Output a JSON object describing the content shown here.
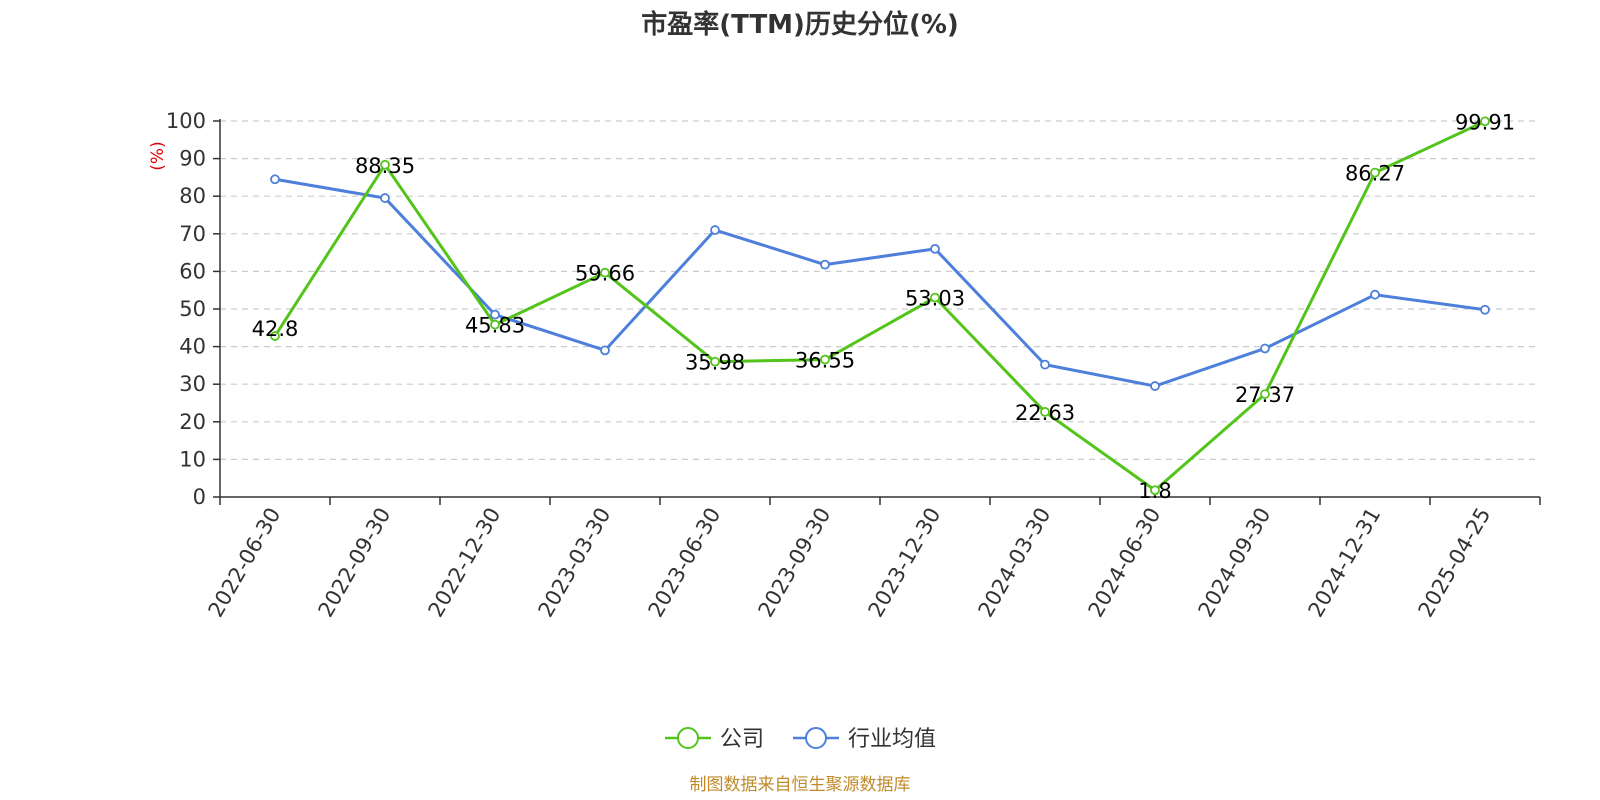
{
  "chart_data": {
    "type": "line",
    "title": "市盈率(TTM)历史分位(%)",
    "ylabel": "(%)",
    "xlabel": "",
    "ylim": [
      0,
      100
    ],
    "yticks": [
      0,
      10,
      20,
      30,
      40,
      50,
      60,
      70,
      80,
      90,
      100
    ],
    "grid": "horizontal-dashed",
    "legend_position": "bottom-center",
    "categories": [
      "2022-06-30",
      "2022-09-30",
      "2022-12-30",
      "2023-03-30",
      "2023-06-30",
      "2023-09-30",
      "2023-12-30",
      "2024-03-30",
      "2024-06-30",
      "2024-09-30",
      "2024-12-31",
      "2025-04-25"
    ],
    "series": [
      {
        "name": "公司",
        "color": "#52c41a",
        "values": [
          42.8,
          88.35,
          45.83,
          59.66,
          35.98,
          36.55,
          53.03,
          22.63,
          1.8,
          27.37,
          86.27,
          99.91
        ],
        "labels": [
          "42.8",
          "88.35",
          "45.83",
          "59.66",
          "35.98",
          "36.55",
          "53.03",
          "22.63",
          "1.8",
          "27.37",
          "86.27",
          "99.91"
        ]
      },
      {
        "name": "行业均值",
        "color": "#4e7fdb",
        "values": [
          84.5,
          79.5,
          48.5,
          39,
          71,
          61.8,
          66,
          35.2,
          29.5,
          39.5,
          53.8,
          49.8
        ]
      }
    ],
    "source": "制图数据来自恒生聚源数据库"
  }
}
